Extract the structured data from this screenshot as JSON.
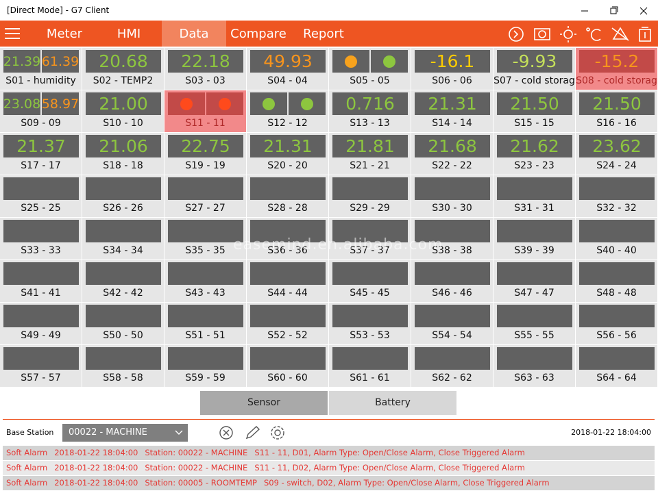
{
  "window": {
    "title": "[Direct Mode] - G7 Client"
  },
  "nav": {
    "tabs": [
      {
        "label": "Meter",
        "active": false
      },
      {
        "label": "HMI",
        "active": false
      },
      {
        "label": "Data",
        "active": true
      },
      {
        "label": "Compare",
        "active": false
      },
      {
        "label": "Report",
        "active": false
      }
    ]
  },
  "grid": {
    "cells": [
      {
        "label": "S01 - humidity",
        "readings": [
          {
            "text": "21.39",
            "color": "#8dc63f"
          },
          {
            "text": "61.39",
            "color": "#f7941d"
          }
        ]
      },
      {
        "label": "S02 - TEMP2",
        "readings": [
          {
            "text": "20.68",
            "color": "#8dc63f"
          }
        ]
      },
      {
        "label": "S03 - 03",
        "readings": [
          {
            "text": "22.18",
            "color": "#8dc63f"
          }
        ]
      },
      {
        "label": "S04 - 04",
        "readings": [
          {
            "text": "49.93",
            "color": "#f7941d"
          }
        ]
      },
      {
        "label": "S05 - 05",
        "dots": [
          "#f7a21d",
          "#8dc63f"
        ]
      },
      {
        "label": "S06 - 06",
        "readings": [
          {
            "text": "-16.1",
            "color": "#ffcc00"
          }
        ]
      },
      {
        "label": "S07 - cold storag",
        "readings": [
          {
            "text": "-9.93",
            "color": "#c5e05a"
          }
        ]
      },
      {
        "label": "S08 - cold storag",
        "alarm": true,
        "readings": [
          {
            "text": "-15.2",
            "color": "#f7941d"
          }
        ]
      },
      {
        "label": "S09 - 09",
        "readings": [
          {
            "text": "23.08",
            "color": "#8dc63f"
          },
          {
            "text": "58.97",
            "color": "#f7941d"
          }
        ]
      },
      {
        "label": "S10 - 10",
        "readings": [
          {
            "text": "21.00",
            "color": "#8dc63f"
          }
        ]
      },
      {
        "label": "S11 - 11",
        "alarm": true,
        "dots": [
          "#ff4a1c",
          "#ff4a1c"
        ]
      },
      {
        "label": "S12 - 12",
        "dots": [
          "#8dc63f",
          "#8dc63f"
        ]
      },
      {
        "label": "S13 - 13",
        "readings": [
          {
            "text": "0.716",
            "color": "#8dc63f"
          }
        ]
      },
      {
        "label": "S14 - 14",
        "readings": [
          {
            "text": "21.31",
            "color": "#8dc63f"
          }
        ]
      },
      {
        "label": "S15 - 15",
        "readings": [
          {
            "text": "21.50",
            "color": "#8dc63f"
          }
        ]
      },
      {
        "label": "S16 - 16",
        "readings": [
          {
            "text": "21.50",
            "color": "#8dc63f"
          }
        ]
      },
      {
        "label": "S17 - 17",
        "readings": [
          {
            "text": "21.37",
            "color": "#8dc63f"
          }
        ]
      },
      {
        "label": "S18 - 18",
        "readings": [
          {
            "text": "21.06",
            "color": "#8dc63f"
          }
        ]
      },
      {
        "label": "S19 - 19",
        "readings": [
          {
            "text": "22.75",
            "color": "#8dc63f"
          }
        ]
      },
      {
        "label": "S20 - 20",
        "readings": [
          {
            "text": "21.31",
            "color": "#8dc63f"
          }
        ]
      },
      {
        "label": "S21 - 21",
        "readings": [
          {
            "text": "21.81",
            "color": "#8dc63f"
          }
        ]
      },
      {
        "label": "S22 - 22",
        "readings": [
          {
            "text": "21.68",
            "color": "#8dc63f"
          }
        ]
      },
      {
        "label": "S23 - 23",
        "readings": [
          {
            "text": "21.62",
            "color": "#8dc63f"
          }
        ]
      },
      {
        "label": "S24 - 24",
        "readings": [
          {
            "text": "23.62",
            "color": "#8dc63f"
          }
        ]
      },
      {
        "label": "S25 - 25"
      },
      {
        "label": "S26 - 26"
      },
      {
        "label": "S27 - 27"
      },
      {
        "label": "S28 - 28"
      },
      {
        "label": "S29 - 29"
      },
      {
        "label": "S30 - 30"
      },
      {
        "label": "S31 - 31"
      },
      {
        "label": "S32 - 32"
      },
      {
        "label": "S33 - 33"
      },
      {
        "label": "S34 - 34"
      },
      {
        "label": "S35 - 35"
      },
      {
        "label": "S36 - 36"
      },
      {
        "label": "S37 - 37"
      },
      {
        "label": "S38 - 38"
      },
      {
        "label": "S39 - 39"
      },
      {
        "label": "S40 - 40"
      },
      {
        "label": "S41 - 41"
      },
      {
        "label": "S42 - 42"
      },
      {
        "label": "S43 - 43"
      },
      {
        "label": "S44 - 44"
      },
      {
        "label": "S45 - 45"
      },
      {
        "label": "S46 - 46"
      },
      {
        "label": "S47 - 47"
      },
      {
        "label": "S48 - 48"
      },
      {
        "label": "S49 - 49"
      },
      {
        "label": "S50 - 50"
      },
      {
        "label": "S51 - 51"
      },
      {
        "label": "S52 - 52"
      },
      {
        "label": "S53 - 53"
      },
      {
        "label": "S54 - 54"
      },
      {
        "label": "S55 - 55"
      },
      {
        "label": "S56 - 56"
      },
      {
        "label": "S57 - 57"
      },
      {
        "label": "S58 - 58"
      },
      {
        "label": "S59 - 59"
      },
      {
        "label": "S60 - 60"
      },
      {
        "label": "S61 - 61"
      },
      {
        "label": "S62 - 62"
      },
      {
        "label": "S63 - 63"
      },
      {
        "label": "S64 - 64"
      }
    ]
  },
  "watermark": "easemind.en.alibaba.com",
  "view_buttons": [
    {
      "label": "Sensor",
      "active": true
    },
    {
      "label": "Battery",
      "active": false
    }
  ],
  "base_station": {
    "label": "Base Station",
    "selected": "00022 - MACHINE",
    "datetime": "2018-01-22 18:04:00"
  },
  "alarms": [
    [
      "Soft Alarm",
      "2018-01-22 18:04:00",
      "Station: 00022 - MACHINE",
      "S11 - 11, D01, Alarm Type: Open/Close Alarm, Close Triggered Alarm"
    ],
    [
      "Soft Alarm",
      "2018-01-22 18:04:00",
      "Station: 00022 - MACHINE",
      "S11 - 11, D02, Alarm Type: Open/Close Alarm, Close Triggered Alarm"
    ],
    [
      "Soft Alarm",
      "2018-01-22 18:04:00",
      "Station: 00005 - ROOMTEMP",
      "S09 - switch, D02, Alarm Type: Open/Close Alarm, Close Triggered Alarm"
    ]
  ]
}
